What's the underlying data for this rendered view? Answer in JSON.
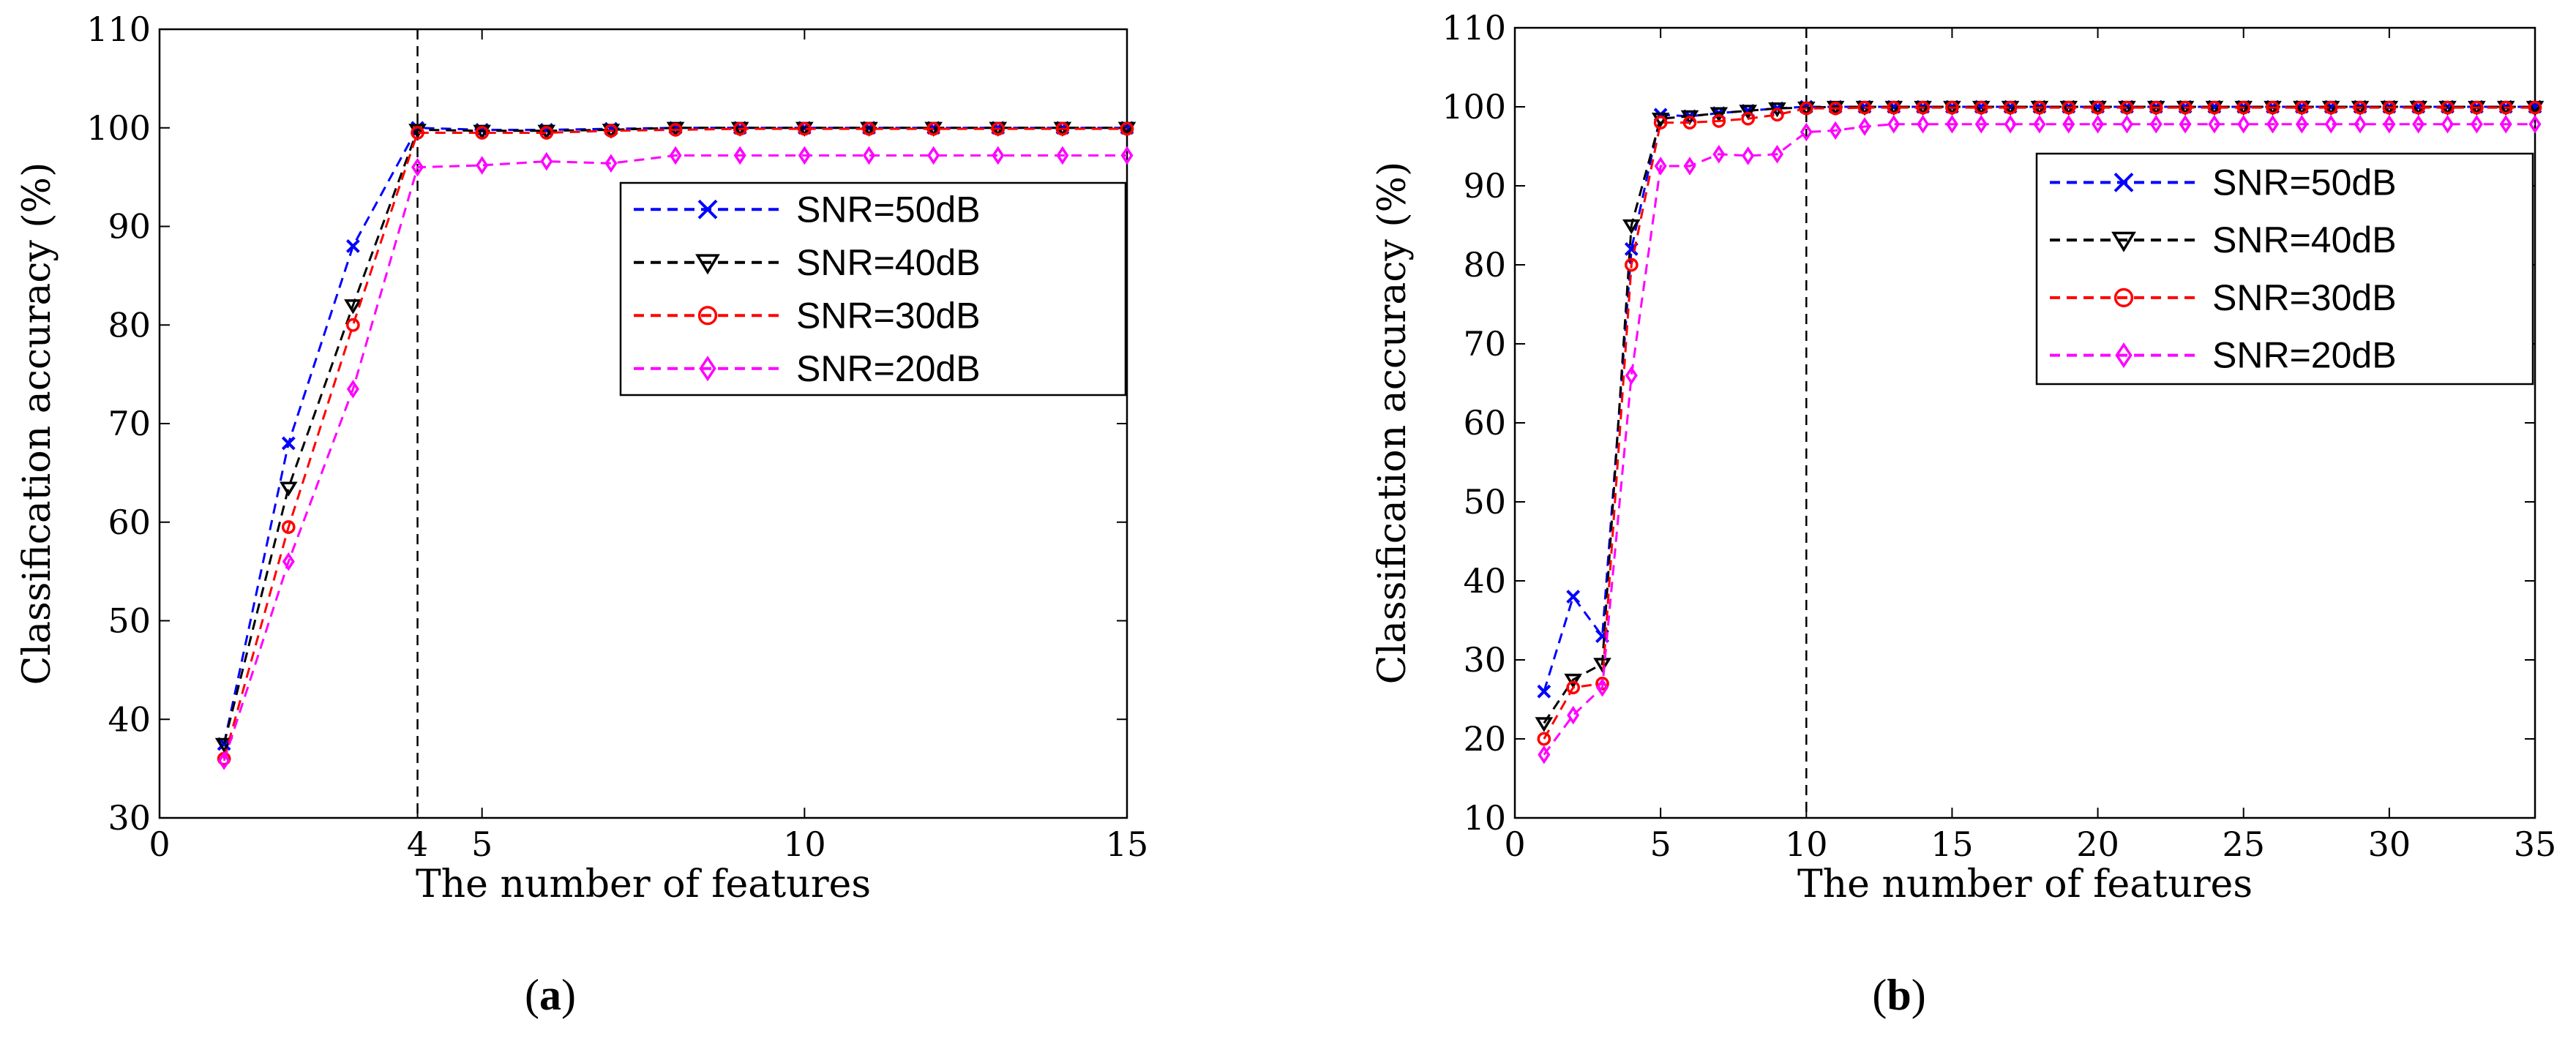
{
  "chart_data": [
    {
      "type": "line",
      "panel_label": "a",
      "xlabel": "The number of features",
      "ylabel": "Classification accuracy (%)",
      "xlim": [
        0,
        15
      ],
      "ylim": [
        30,
        110
      ],
      "xticks": [
        0,
        4,
        5,
        10,
        15
      ],
      "yticks": [
        30,
        40,
        50,
        60,
        70,
        80,
        90,
        100,
        110
      ],
      "vline": 4,
      "legend_position": "upper-right",
      "x": [
        1,
        2,
        3,
        4,
        5,
        6,
        7,
        8,
        9,
        10,
        11,
        12,
        13,
        14,
        15
      ],
      "series": [
        {
          "name": "SNR=50dB",
          "color": "#0000ff",
          "marker": "x",
          "values": [
            37.5,
            68,
            88,
            100,
            99.8,
            99.8,
            99.9,
            100,
            100,
            100,
            100,
            100,
            100,
            100,
            100
          ]
        },
        {
          "name": "SNR=40dB",
          "color": "#000000",
          "marker": "triangle-down",
          "values": [
            37.5,
            63.5,
            82,
            99.8,
            99.7,
            99.7,
            99.8,
            100,
            100,
            100,
            100,
            100,
            100,
            100,
            100
          ]
        },
        {
          "name": "SNR=30dB",
          "color": "#ff0000",
          "marker": "circle",
          "values": [
            36,
            59.5,
            80,
            99.5,
            99.5,
            99.5,
            99.7,
            99.8,
            99.9,
            99.9,
            99.9,
            99.9,
            99.9,
            99.9,
            99.9
          ]
        },
        {
          "name": "SNR=20dB",
          "color": "#ff00ff",
          "marker": "diamond",
          "values": [
            35.8,
            56,
            73.5,
            96,
            96.2,
            96.6,
            96.4,
            97.2,
            97.2,
            97.2,
            97.2,
            97.2,
            97.2,
            97.2,
            97.2
          ]
        }
      ]
    },
    {
      "type": "line",
      "panel_label": "b",
      "xlabel": "The number of features",
      "ylabel": "Classification accuracy (%)",
      "xlim": [
        0,
        35
      ],
      "ylim": [
        10,
        110
      ],
      "xticks": [
        0,
        5,
        10,
        15,
        20,
        25,
        30,
        35
      ],
      "yticks": [
        10,
        20,
        30,
        40,
        50,
        60,
        70,
        80,
        90,
        100,
        110
      ],
      "vline": 10,
      "legend_position": "upper-right",
      "x": [
        1,
        2,
        3,
        4,
        5,
        6,
        7,
        8,
        9,
        10,
        11,
        12,
        13,
        14,
        15,
        16,
        17,
        18,
        19,
        20,
        21,
        22,
        23,
        24,
        25,
        26,
        27,
        28,
        29,
        30,
        31,
        32,
        33,
        34,
        35
      ],
      "series": [
        {
          "name": "SNR=50dB",
          "color": "#0000ff",
          "marker": "x",
          "values": [
            26,
            38,
            33,
            82,
            99,
            98.8,
            99.2,
            99.5,
            99.8,
            100,
            100,
            100,
            100,
            100,
            100,
            100,
            100,
            100,
            100,
            100,
            100,
            100,
            100,
            100,
            100,
            100,
            100,
            100,
            100,
            100,
            100,
            100,
            100,
            100,
            100
          ]
        },
        {
          "name": "SNR=40dB",
          "color": "#000000",
          "marker": "triangle-down",
          "values": [
            22,
            27.5,
            29.5,
            85,
            98.5,
            98.8,
            99.2,
            99.5,
            99.8,
            99.9,
            100,
            100,
            100,
            100,
            100,
            100,
            100,
            100,
            100,
            100,
            100,
            100,
            100,
            100,
            100,
            100,
            100,
            100,
            100,
            100,
            100,
            100,
            100,
            100,
            100
          ]
        },
        {
          "name": "SNR=30dB",
          "color": "#ff0000",
          "marker": "circle",
          "values": [
            20,
            26.5,
            27,
            80,
            98,
            98,
            98.2,
            98.5,
            99,
            99.8,
            99.8,
            99.9,
            99.9,
            99.9,
            99.9,
            99.9,
            99.9,
            99.9,
            99.9,
            99.9,
            99.9,
            99.9,
            99.9,
            99.9,
            99.9,
            99.9,
            99.9,
            99.9,
            99.9,
            99.9,
            99.9,
            99.9,
            99.9,
            99.9,
            99.9
          ]
        },
        {
          "name": "SNR=20dB",
          "color": "#ff00ff",
          "marker": "diamond",
          "values": [
            18,
            23,
            26.5,
            66,
            92.5,
            92.5,
            94,
            93.8,
            94,
            96.8,
            97,
            97.5,
            97.8,
            97.8,
            97.8,
            97.8,
            97.8,
            97.8,
            97.8,
            97.8,
            97.8,
            97.8,
            97.8,
            97.8,
            97.8,
            97.8,
            97.8,
            97.8,
            97.8,
            97.8,
            97.8,
            97.8,
            97.8,
            97.8,
            97.8
          ]
        }
      ]
    }
  ]
}
